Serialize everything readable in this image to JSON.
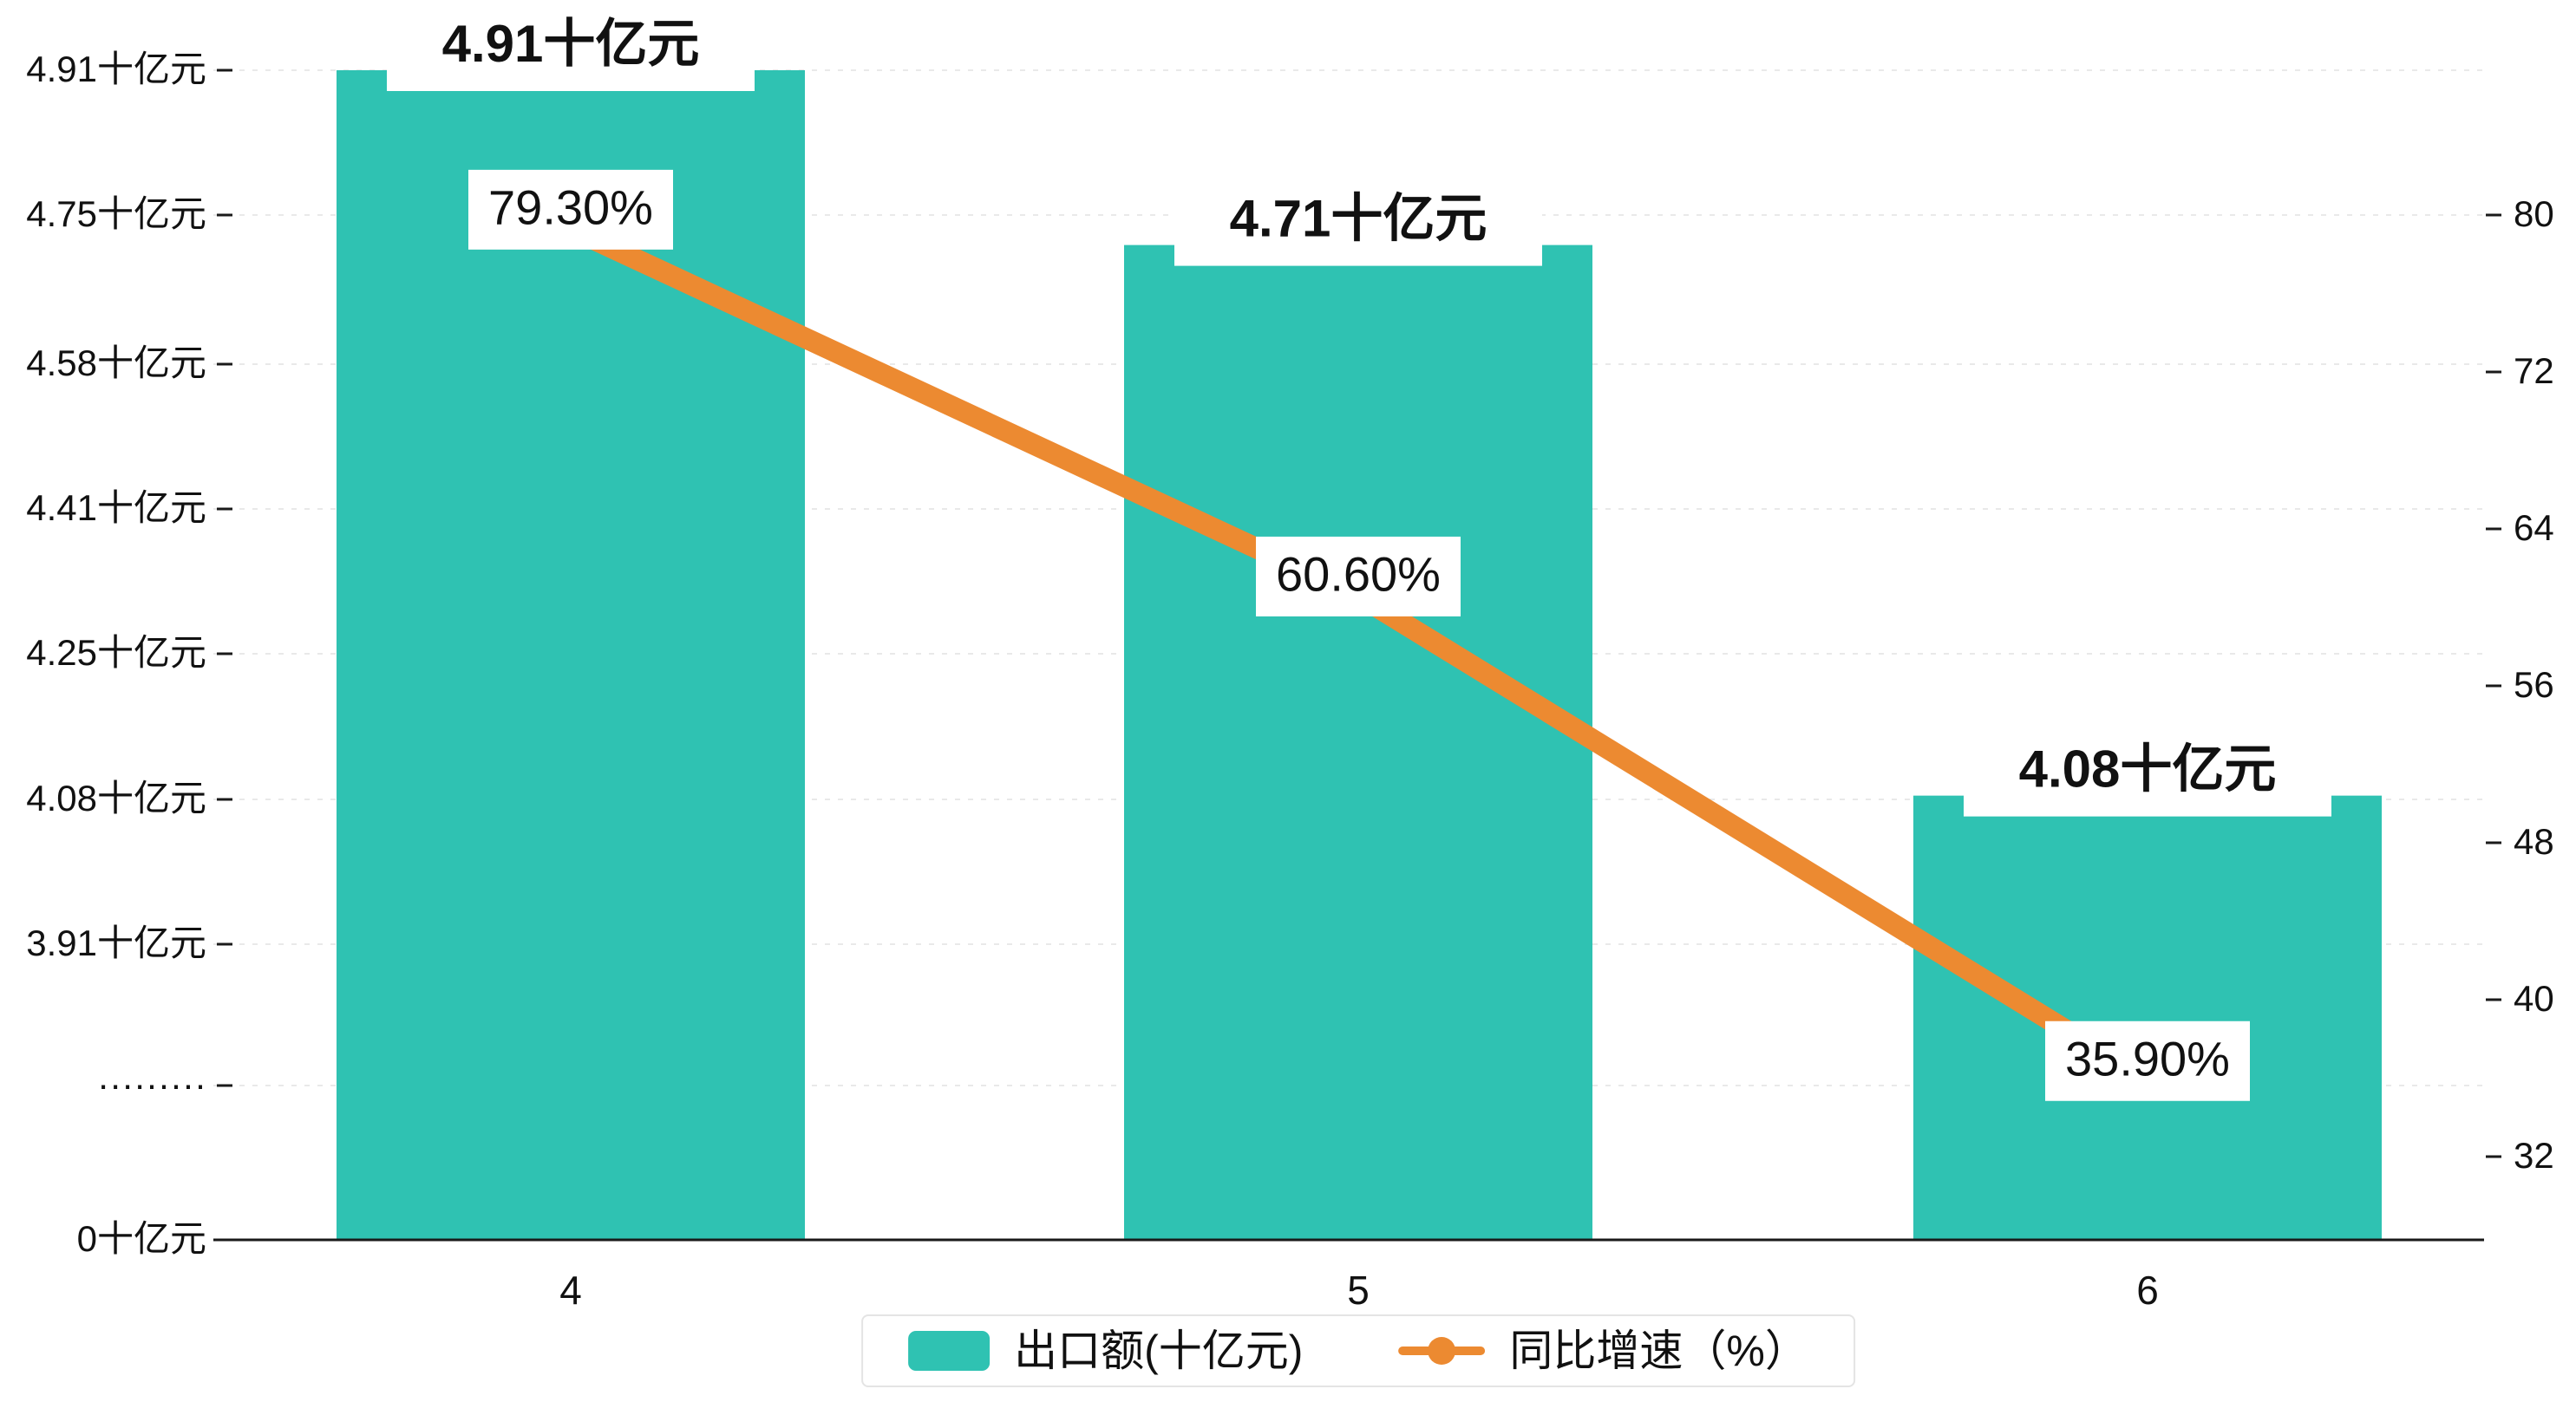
{
  "chart_data": {
    "type": "bar",
    "subtype": "bar-line-combo",
    "categories": [
      "4",
      "5",
      "6"
    ],
    "series": [
      {
        "name": "出口额(十亿元)",
        "type": "bar",
        "axis": "left",
        "values": [
          4.91,
          4.71,
          4.08
        ],
        "labels": [
          "4.91十亿元",
          "4.71十亿元",
          "4.08十亿元"
        ],
        "color": "#2fc2b2"
      },
      {
        "name": "同比增速（%）",
        "type": "line",
        "axis": "right",
        "values": [
          79.3,
          60.6,
          35.9
        ],
        "labels": [
          "79.30%",
          "60.60%",
          "35.90%"
        ],
        "color": "#ec8a31"
      }
    ],
    "left_axis": {
      "unit": "十亿元",
      "axis_break": true,
      "ticks": [
        {
          "label": "4.91十亿元",
          "value": 4.91
        },
        {
          "label": "4.75十亿元",
          "value": 4.75
        },
        {
          "label": "4.58十亿元",
          "value": 4.58
        },
        {
          "label": "4.41十亿元",
          "value": 4.41
        },
        {
          "label": "4.25十亿元",
          "value": 4.25
        },
        {
          "label": "4.08十亿元",
          "value": 4.08
        },
        {
          "label": "3.91十亿元",
          "value": 3.91
        },
        {
          "label": "·········",
          "value": null
        },
        {
          "label": "0十亿元",
          "value": 0
        }
      ]
    },
    "right_axis": {
      "unit": "%",
      "min": 32,
      "max": 80,
      "ticks": [
        "80",
        "72",
        "64",
        "56",
        "48",
        "40",
        "32"
      ]
    },
    "legend": {
      "position": "bottom-center",
      "items": [
        {
          "label": "出口额(十亿元)",
          "color": "#2fc2b2",
          "marker": "rect"
        },
        {
          "label": "同比增速（%）",
          "color": "#ec8a31",
          "marker": "line-dot"
        }
      ]
    },
    "grid": "horizontal-dashed"
  },
  "colors": {
    "bar": "#2fc2b2",
    "line": "#ec8a31",
    "grid": "#e9e9e9",
    "axis": "#1a1a1a",
    "text": "#111111",
    "label_box": "#ffffff",
    "background": "#ffffff"
  }
}
